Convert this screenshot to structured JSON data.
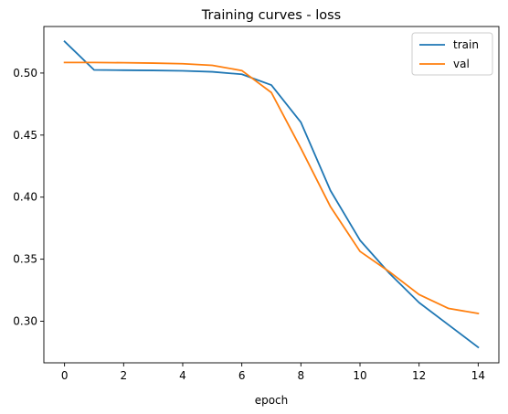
{
  "chart_data": {
    "type": "line",
    "title": "Training curves - loss",
    "xlabel": "epoch",
    "ylabel": "",
    "xlim": [
      -0.7,
      14.7
    ],
    "ylim": [
      0.2665,
      0.5375
    ],
    "xticks": [
      0,
      2,
      4,
      6,
      8,
      10,
      12,
      14
    ],
    "yticks": [
      0.3,
      0.35,
      0.4,
      0.45,
      0.5
    ],
    "xtick_labels": [
      "0",
      "2",
      "4",
      "6",
      "8",
      "10",
      "12",
      "14"
    ],
    "ytick_labels": [
      "0.30",
      "0.35",
      "0.40",
      "0.45",
      "0.50"
    ],
    "grid": false,
    "legend_position": "top-right",
    "x": [
      0,
      1,
      2,
      3,
      4,
      5,
      6,
      7,
      8,
      9,
      10,
      11,
      12,
      13,
      14
    ],
    "series": [
      {
        "name": "train",
        "color": "#1f77b4",
        "values": [
          0.5255,
          0.5025,
          0.5023,
          0.5021,
          0.5018,
          0.501,
          0.499,
          0.4903,
          0.4603,
          0.4053,
          0.3653,
          0.3385,
          0.315,
          0.297,
          0.279
        ]
      },
      {
        "name": "val",
        "color": "#ff7f0e",
        "values": [
          0.5085,
          0.5085,
          0.5083,
          0.508,
          0.5075,
          0.5062,
          0.502,
          0.4843,
          0.4393,
          0.3923,
          0.3563,
          0.3398,
          0.3215,
          0.3103,
          0.3063
        ]
      }
    ]
  }
}
